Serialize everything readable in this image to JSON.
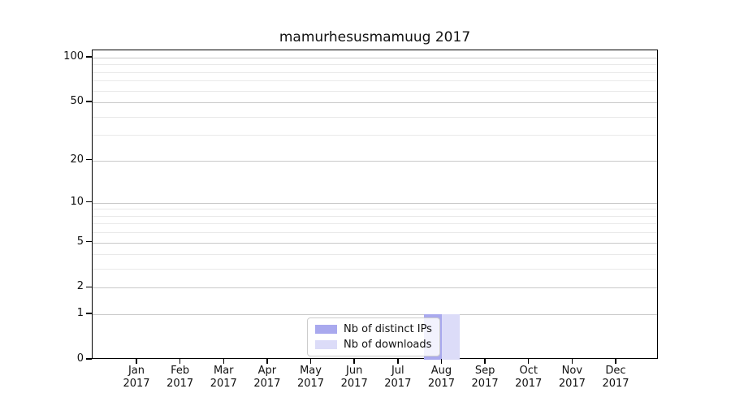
{
  "chart_data": {
    "type": "bar",
    "title": "mamurhesusmamuug 2017",
    "x": {
      "months": [
        "Jan",
        "Feb",
        "Mar",
        "Apr",
        "May",
        "Jun",
        "Jul",
        "Aug",
        "Sep",
        "Oct",
        "Nov",
        "Dec"
      ],
      "year": "2017"
    },
    "series": [
      {
        "name": "Nb of distinct IPs",
        "color": "#a9a9ee",
        "values": [
          0,
          0,
          0,
          0,
          0,
          0,
          0,
          1,
          0,
          0,
          0,
          0
        ]
      },
      {
        "name": "Nb of downloads",
        "color": "#dcdcf8",
        "values": [
          0,
          0,
          0,
          0,
          0,
          0,
          0,
          1,
          0,
          0,
          0,
          0
        ]
      }
    ],
    "y_axis": {
      "scale": "log1p",
      "major_ticks": [
        0,
        1,
        2,
        5,
        10,
        20,
        50,
        100
      ],
      "minor_gridlines": [
        3,
        4,
        6,
        7,
        8,
        9,
        30,
        40,
        60,
        70,
        80,
        90
      ],
      "ylim": [
        0,
        112
      ]
    },
    "legend": {
      "position": "lower-center"
    },
    "grid": true,
    "style": {
      "grid_major": "#c9c9c9",
      "grid_minor": "#e9e9e9",
      "axis_color": "#000000",
      "text_color": "#111111",
      "legend_border": "#cccccc",
      "legend_bg": "rgba(255,255,255,0.85)"
    }
  }
}
